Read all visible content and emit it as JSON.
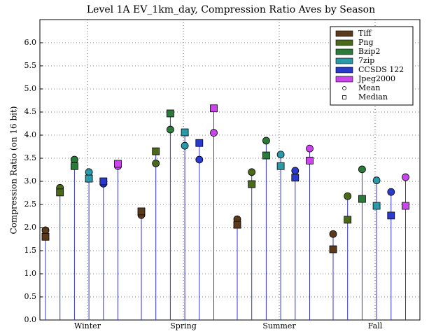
{
  "chart_data": {
    "type": "stem",
    "title": "Level 1A EV_1km_day, Compression Ratio Aves by Season",
    "y_label": "Compression Ratio (on 16 bit)",
    "categories": [
      "Winter",
      "Spring",
      "Summer",
      "Fall"
    ],
    "series": [
      {
        "name": "Tiff",
        "color": "#5a3a1a",
        "mean": [
          1.94,
          2.27,
          2.18,
          1.86
        ],
        "median": [
          1.8,
          2.35,
          2.06,
          1.53
        ]
      },
      {
        "name": "Png",
        "color": "#4a6a1a",
        "mean": [
          2.86,
          3.39,
          3.2,
          2.68
        ],
        "median": [
          2.76,
          3.65,
          2.94,
          2.17
        ]
      },
      {
        "name": "Bzip2",
        "color": "#2a7a3a",
        "mean": [
          3.47,
          4.12,
          3.88,
          3.26
        ],
        "median": [
          3.33,
          4.47,
          3.56,
          2.62
        ]
      },
      {
        "name": "7zip",
        "color": "#2a9aaa",
        "mean": [
          3.2,
          3.77,
          3.58,
          3.02
        ],
        "median": [
          3.06,
          4.06,
          3.33,
          2.47
        ]
      },
      {
        "name": "CCSDS 122",
        "color": "#2a3acc",
        "mean": [
          2.95,
          3.47,
          3.23,
          2.77
        ],
        "median": [
          3.0,
          3.83,
          3.08,
          2.26
        ]
      },
      {
        "name": "Jpeg2000",
        "color": "#cc44ee",
        "mean": [
          3.33,
          4.05,
          3.71,
          3.09
        ],
        "median": [
          3.38,
          4.58,
          3.45,
          2.47
        ]
      }
    ],
    "markers": [
      {
        "name": "Mean",
        "shape": "circle"
      },
      {
        "name": "Median",
        "shape": "square"
      }
    ],
    "stem_color": "#3333cc",
    "ylim": [
      0,
      6.5
    ],
    "yticks": [
      {
        "value": 0,
        "label": "0.0"
      },
      {
        "value": 0.5,
        "label": "0.5"
      },
      {
        "value": 1,
        "label": "1.0"
      },
      {
        "value": 1.5,
        "label": "1.5"
      },
      {
        "value": 2,
        "label": "2.0"
      },
      {
        "value": 2.5,
        "label": "2.5"
      },
      {
        "value": 3,
        "label": "3.0"
      },
      {
        "value": 3.5,
        "label": "3.5"
      },
      {
        "value": 4,
        "label": "4.0"
      },
      {
        "value": 4.5,
        "label": "4.5"
      },
      {
        "value": 5,
        "label": "5.0"
      },
      {
        "value": 5.5,
        "label": "5.5"
      },
      {
        "value": 6,
        "label": "6.0"
      }
    ],
    "grid": true
  }
}
